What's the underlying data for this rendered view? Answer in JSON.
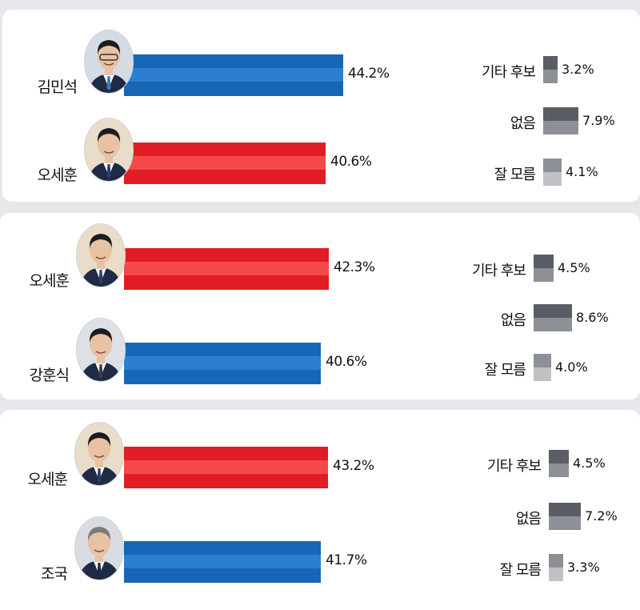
{
  "colors": {
    "blue": "#1866b6",
    "blue_light": "#2a7fd0",
    "red": "#e01d22",
    "red_light": "#f4494a",
    "other_dark": "#5a5d63",
    "other_mid": "#8d9096",
    "other_light": "#bfc1c5"
  },
  "chart_data": [
    {
      "type": "bar",
      "series": [
        {
          "name": "김민석",
          "value": 44.2,
          "value_label": "44.2%",
          "color": "blue",
          "avatar": "avatar-kim"
        },
        {
          "name": "오세훈",
          "value": 40.6,
          "value_label": "40.6%",
          "color": "red",
          "avatar": "avatar-oh"
        }
      ],
      "others": [
        {
          "label": "기타 후보",
          "value": 3.2,
          "value_label": "3.2%"
        },
        {
          "label": "없음",
          "value": 7.9,
          "value_label": "7.9%"
        },
        {
          "label": "잘 모름",
          "value": 4.1,
          "value_label": "4.1%"
        }
      ]
    },
    {
      "type": "bar",
      "series": [
        {
          "name": "오세훈",
          "value": 42.3,
          "value_label": "42.3%",
          "color": "red",
          "avatar": "avatar-oh"
        },
        {
          "name": "강훈식",
          "value": 40.6,
          "value_label": "40.6%",
          "color": "blue",
          "avatar": "avatar-kang"
        }
      ],
      "others": [
        {
          "label": "기타 후보",
          "value": 4.5,
          "value_label": "4.5%"
        },
        {
          "label": "없음",
          "value": 8.6,
          "value_label": "8.6%"
        },
        {
          "label": "잘 모름",
          "value": 4.0,
          "value_label": "4.0%"
        }
      ]
    },
    {
      "type": "bar",
      "series": [
        {
          "name": "오세훈",
          "value": 43.2,
          "value_label": "43.2%",
          "color": "red",
          "avatar": "avatar-oh"
        },
        {
          "name": "조국",
          "value": 41.7,
          "value_label": "41.7%",
          "color": "blue",
          "avatar": "avatar-cho"
        }
      ],
      "others": [
        {
          "label": "기타 후보",
          "value": 4.5,
          "value_label": "4.5%"
        },
        {
          "label": "없음",
          "value": 7.2,
          "value_label": "7.2%"
        },
        {
          "label": "잘 모름",
          "value": 3.3,
          "value_label": "3.3%"
        }
      ]
    }
  ]
}
